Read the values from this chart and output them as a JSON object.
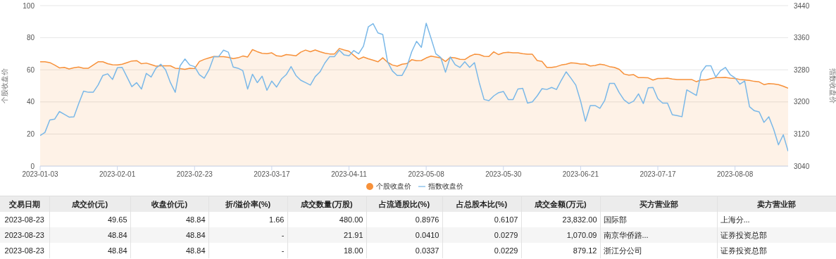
{
  "chart_data": [
    {
      "type": "line",
      "ylabel": "个股收盘价",
      "y2label": "指数收盘价",
      "ylim": [
        0,
        100
      ],
      "yticks": [
        0,
        20,
        40,
        60,
        80,
        100
      ],
      "y2lim": [
        3040,
        3440
      ],
      "y2ticks": [
        3040,
        3120,
        3200,
        3280,
        3360,
        3440
      ],
      "grid": "y",
      "legend": "bottom",
      "categories": [
        "2023-01-03",
        null,
        null,
        null,
        null,
        null,
        null,
        null,
        null,
        null,
        null,
        null,
        null,
        null,
        null,
        null,
        "2023-02-01",
        null,
        null,
        null,
        null,
        null,
        null,
        null,
        null,
        null,
        null,
        null,
        null,
        null,
        null,
        null,
        "2023-02-23",
        null,
        null,
        null,
        null,
        null,
        null,
        null,
        null,
        null,
        null,
        null,
        null,
        null,
        null,
        null,
        "2023-03-17",
        null,
        null,
        null,
        null,
        null,
        null,
        null,
        null,
        null,
        null,
        null,
        null,
        null,
        null,
        null,
        "2023-04-11",
        null,
        null,
        null,
        null,
        null,
        null,
        null,
        null,
        null,
        null,
        null,
        null,
        null,
        null,
        null,
        "2023-05-08",
        null,
        null,
        null,
        null,
        null,
        null,
        null,
        null,
        null,
        null,
        null,
        null,
        null,
        null,
        null,
        "2023-05-30",
        null,
        null,
        null,
        null,
        null,
        null,
        null,
        null,
        null,
        null,
        null,
        null,
        null,
        null,
        null,
        "2023-06-21",
        null,
        null,
        null,
        null,
        null,
        null,
        null,
        null,
        null,
        null,
        null,
        null,
        null,
        null,
        null,
        "2023-07-17",
        null,
        null,
        null,
        null,
        null,
        null,
        null,
        null,
        null,
        null,
        null,
        null,
        null,
        null,
        null,
        "2023-08-08",
        null,
        null,
        null,
        null,
        null,
        null,
        null,
        null,
        null,
        null,
        null
      ],
      "series": [
        {
          "name": "指数收盘价",
          "type": "line",
          "axis": "y2",
          "color": "#7ab8e8",
          "values": [
            3116,
            3124,
            3155,
            3157,
            3176,
            3169,
            3162,
            3163,
            3196,
            3227,
            3224,
            3224,
            3242,
            3266,
            3270,
            3256,
            3285,
            3286,
            3262,
            3238,
            3248,
            3232,
            3271,
            3262,
            3284,
            3294,
            3280,
            3248,
            3224,
            3290,
            3307,
            3292,
            3288,
            3268,
            3259,
            3280,
            3313,
            3313,
            3329,
            3324,
            3287,
            3284,
            3278,
            3232,
            3269,
            3248,
            3264,
            3229,
            3252,
            3237,
            3257,
            3268,
            3288,
            3266,
            3254,
            3248,
            3242,
            3263,
            3275,
            3297,
            3313,
            3313,
            3329,
            3317,
            3315,
            3328,
            3320,
            3339,
            3387,
            3395,
            3372,
            3368,
            3300,
            3277,
            3266,
            3266,
            3288,
            3325,
            3351,
            3336,
            3396,
            3359,
            3320,
            3311,
            3274,
            3312,
            3293,
            3286,
            3300,
            3286,
            3298,
            3248,
            3206,
            3203,
            3215,
            3223,
            3226,
            3206,
            3206,
            3232,
            3234,
            3197,
            3200,
            3215,
            3233,
            3231,
            3236,
            3231,
            3254,
            3275,
            3259,
            3242,
            3202,
            3152,
            3191,
            3191,
            3184,
            3204,
            3246,
            3246,
            3223,
            3205,
            3196,
            3202,
            3220,
            3196,
            3235,
            3236,
            3208,
            3197,
            3197,
            3168,
            3166,
            3163,
            3230,
            3223,
            3216,
            3274,
            3290,
            3290,
            3262,
            3278,
            3286,
            3268,
            3260,
            3244,
            3252,
            3188,
            3178,
            3175,
            3149,
            3163,
            3132,
            3093,
            3118,
            3077
          ]
        },
        {
          "name": "个股收盘价",
          "type": "area",
          "color": "#f7913a",
          "values": [
            65,
            65,
            64.5,
            63,
            61.2,
            61.5,
            60.5,
            61.3,
            61.7,
            61,
            61,
            63,
            65,
            65,
            63.8,
            63.2,
            63,
            63.5,
            64.5,
            65.5,
            65.7,
            63.8,
            64.2,
            63.3,
            62.3,
            62.5,
            62.5,
            62.5,
            61,
            60.7,
            60.3,
            61,
            60.8,
            65.2,
            66.5,
            67.4,
            68.3,
            68.2,
            68.2,
            67.8,
            67,
            67.5,
            68.6,
            68,
            72.6,
            71.3,
            70.3,
            70.1,
            70.6,
            68.7,
            68.4,
            69.5,
            69.2,
            68.7,
            71,
            72.3,
            71.3,
            72.4,
            71.3,
            70.4,
            69.9,
            69.9,
            73.3,
            72.4,
            71.6,
            69,
            66.6,
            68,
            66.9,
            66,
            65,
            67.5,
            64.7,
            63,
            62.3,
            63.5,
            63.9,
            66.3,
            65.7,
            65.8,
            67.4,
            68.5,
            68,
            67.4,
            65.2,
            67.8,
            67.4,
            66.6,
            66.4,
            68.4,
            69.7,
            69.5,
            68.4,
            68.3,
            71.2,
            69.5,
            70.6,
            70.9,
            70.6,
            70.6,
            70.1,
            69.7,
            69.7,
            65.8,
            65.2,
            61.5,
            61.5,
            62,
            63,
            63.5,
            64.4,
            64.1,
            63.6,
            63.6,
            62.4,
            62.7,
            63.5,
            63,
            62,
            61.5,
            60.3,
            57.4,
            56.7,
            57,
            55.1,
            55.1,
            55,
            53.6,
            54.6,
            54.6,
            54.8,
            54.3,
            54,
            54,
            54,
            54,
            52.6,
            53.7,
            53.7,
            54.5,
            55.1,
            55.1,
            55.3,
            54.8,
            54.6,
            54,
            53.7,
            53.4,
            52.8,
            52.5,
            50.8,
            51.4,
            51.2,
            50.8,
            49.8,
            48.5
          ]
        }
      ]
    },
    {
      "type": "other",
      "categories": [
        "交易日期",
        "成交价(元)",
        "收盘价(元)",
        "折/溢价率(%)",
        "成交数量(万股)",
        "占流通股比(%)",
        "占总股本比(%)",
        "成交金额(万元)",
        "买方营业部",
        "卖方营业部"
      ],
      "cell_labels": [
        [
          "2023-08-23",
          "49.65",
          "48.84",
          "1.66",
          "480.00",
          "0.8976",
          "0.6107",
          "23,832.00",
          "国际部",
          "上海分..."
        ],
        [
          "2023-08-23",
          "48.84",
          "48.84",
          "-",
          "21.91",
          "0.0410",
          "0.0279",
          "1,070.09",
          "南京华侨路...",
          "证券投资总部"
        ],
        [
          "2023-08-23",
          "48.84",
          "48.84",
          "-",
          "18.00",
          "0.0337",
          "0.0229",
          "879.12",
          "浙江分公司",
          "证券投资总部"
        ]
      ]
    }
  ]
}
